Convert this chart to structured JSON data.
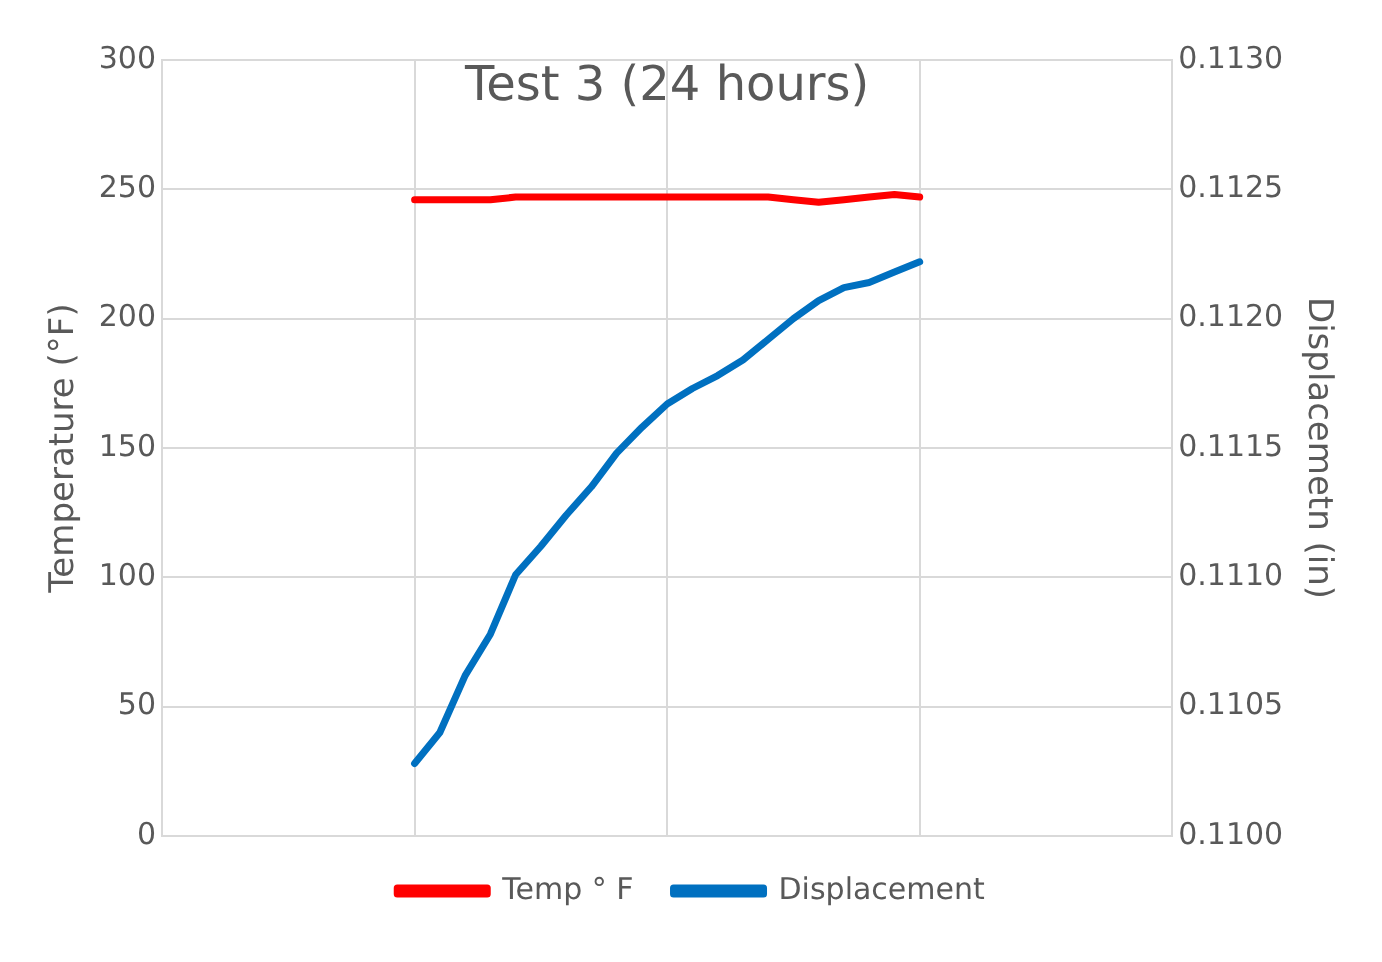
{
  "chart_data": {
    "type": "line",
    "title": "Test 3 (24 hours)",
    "ylabel": "Temperature (°F)",
    "y2label": "Displacemetn (in)",
    "categories": [
      null,
      null,
      null,
      null,
      null,
      null,
      null,
      null,
      null,
      null,
      null,
      null,
      null,
      null,
      null,
      null,
      null,
      null,
      null,
      null,
      null,
      null,
      null,
      null,
      null,
      null,
      null,
      null,
      null,
      null,
      null,
      null,
      null,
      null,
      null,
      null,
      null,
      null,
      null,
      null,
      null
    ],
    "ylim": [
      0,
      300
    ],
    "yticks": [
      0,
      50,
      100,
      150,
      200,
      250,
      300
    ],
    "y2lim": [
      0.11,
      0.113
    ],
    "y2ticks": [
      {
        "value": 0.11,
        "label": "0.1100"
      },
      {
        "value": 0.1105,
        "label": "0.1105"
      },
      {
        "value": 0.111,
        "label": "0.1110"
      },
      {
        "value": 0.1115,
        "label": "0.1115"
      },
      {
        "value": 0.112,
        "label": "0.1120"
      },
      {
        "value": 0.1125,
        "label": "0.1125"
      },
      {
        "value": 0.113,
        "label": "0.1130"
      }
    ],
    "tick_labels": "y",
    "grid": true,
    "legend": "bottom",
    "marker": "none",
    "line_style": "solid",
    "series": [
      {
        "name": "Temp ° F",
        "color": "#ff0000",
        "values": [
          null,
          null,
          null,
          null,
          null,
          null,
          null,
          null,
          null,
          null,
          246,
          246,
          246,
          246,
          247,
          247,
          247,
          247,
          247,
          247,
          247,
          247,
          247,
          247,
          247,
          246,
          245,
          246,
          247,
          248,
          247,
          null,
          null,
          null,
          null,
          null,
          null,
          null,
          null,
          null,
          null
        ]
      },
      {
        "name": "Displacement",
        "color": "#0070c0",
        "axis": "y2",
        "values": [
          null,
          null,
          null,
          null,
          null,
          null,
          null,
          null,
          null,
          null,
          0.11028,
          0.1104,
          0.11062,
          0.11078,
          0.11101,
          0.11112,
          0.11124,
          0.11135,
          0.11148,
          0.11158,
          0.11167,
          0.11173,
          0.11178,
          0.11184,
          0.11192,
          0.112,
          0.11207,
          0.11212,
          0.11214,
          0.11218,
          0.11222,
          null,
          null,
          null,
          null,
          null,
          null,
          null,
          null,
          null,
          null
        ]
      }
    ]
  }
}
